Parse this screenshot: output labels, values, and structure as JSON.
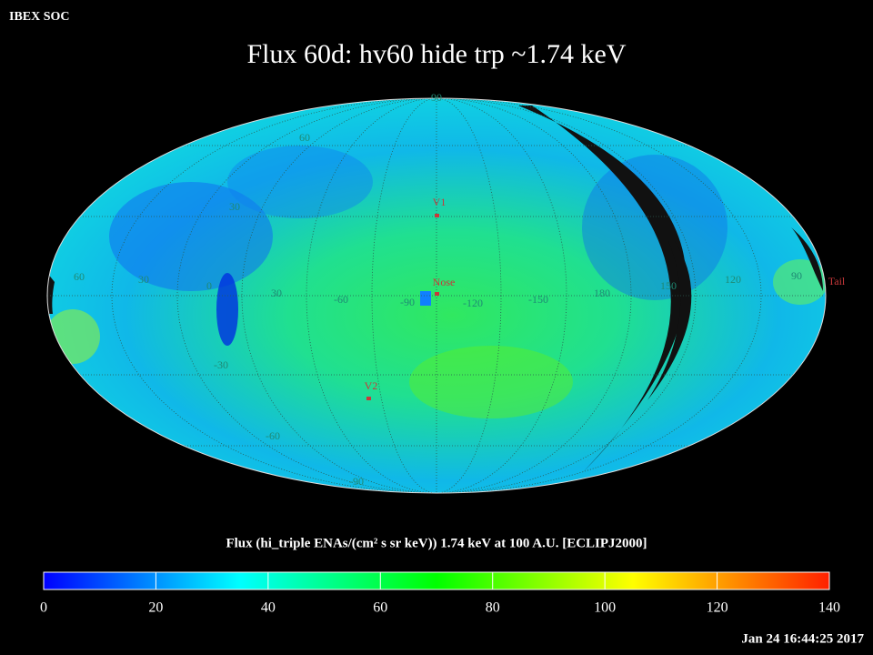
{
  "chart_data": {
    "type": "skymap",
    "header": "IBEX SOC",
    "title": "Flux   60d: hv60 hide trp ~1.74 keV",
    "colorbar_label": "Flux (hi_triple ENAs/(cm² s sr keV))  1.74 keV at 100 A.U. [ECLIPJ2000]",
    "timestamp": "Jan 24 16:44:25 2017",
    "longitude_labels": [
      "60",
      "30",
      "0",
      "30",
      "-60",
      "-90",
      "-120",
      "-150",
      "180",
      "150",
      "120",
      "90"
    ],
    "latitude_labels": [
      "90",
      "60",
      "30",
      "-30",
      "-60",
      "-90"
    ],
    "markers": [
      "V1",
      "Nose",
      "V2",
      "Tail"
    ],
    "colorbar": {
      "lim": [
        0,
        140
      ],
      "ticks": [
        0,
        20,
        40,
        60,
        80,
        100,
        120,
        140
      ],
      "colors": [
        "#0000ff",
        "#0080ff",
        "#00ffff",
        "#00ff80",
        "#00ff00",
        "#80ff00",
        "#ffff00",
        "#ff9000",
        "#ff2000"
      ]
    }
  }
}
